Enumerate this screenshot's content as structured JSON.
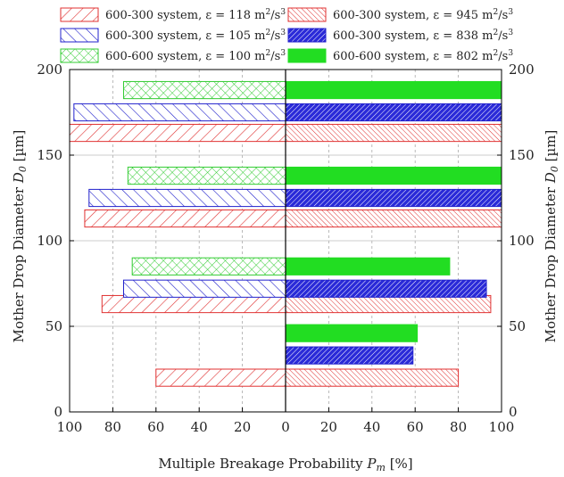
{
  "chart_data": {
    "type": "bar",
    "orientation": "horizontal-butterfly",
    "xlabel": "Multiple Breakage Probability P_m [%]",
    "xlabel_parts": {
      "main": "Multiple Breakage Probability ",
      "sym": "P",
      "sub": "m",
      "unit": " [%]"
    },
    "ylabel_left": "Mother Drop Diameter D_0 [µm]",
    "ylabel_parts": {
      "main": "Mother Drop Diameter ",
      "sym": "D",
      "sub": "0",
      "unit": " [µm]"
    },
    "x_left_ticks": [
      100,
      80,
      60,
      40,
      20,
      0
    ],
    "x_right_ticks": [
      0,
      20,
      40,
      60,
      80,
      100
    ],
    "y_ticks": [
      0,
      50,
      100,
      150,
      200
    ],
    "xlim_left": [
      100,
      0
    ],
    "xlim_right": [
      0,
      100
    ],
    "ylim": [
      0,
      200
    ],
    "grid": "dashed vertical x-gridlines, y-gridlines at 50, 100, 150",
    "legend_position": "top, two columns",
    "series": [
      {
        "name": "600-300 system, ε = 118 m²/s³",
        "label_text": "600-300 system, ε = 118 m",
        "label_sup1": "2",
        "label_mid": "/s",
        "label_sup2": "3",
        "side": "left",
        "pattern": "diag-red",
        "color": "#e03131",
        "bars": [
          {
            "y_center": 20,
            "value": 60
          },
          {
            "y_center": 63,
            "value": 85
          },
          {
            "y_center": 113,
            "value": 93
          },
          {
            "y_center": 163,
            "value": 100
          }
        ]
      },
      {
        "name": "600-300 system, ε = 105 m²/s³",
        "label_text": "600-300 system, ε = 105 m",
        "label_sup1": "2",
        "label_mid": "/s",
        "label_sup2": "3",
        "side": "left",
        "pattern": "anti-blue",
        "color": "#2222cc",
        "bars": [
          {
            "y_center": 72,
            "value": 75
          },
          {
            "y_center": 125,
            "value": 91
          },
          {
            "y_center": 175,
            "value": 98
          }
        ]
      },
      {
        "name": "600-600 system, ε = 100 m²/s³",
        "label_text": "600-600 system, ε = 100 m",
        "label_sup1": "2",
        "label_mid": "/s",
        "label_sup2": "3",
        "side": "left",
        "pattern": "cross-green",
        "color": "#33cc33",
        "bars": [
          {
            "y_center": 85,
            "value": 71
          },
          {
            "y_center": 138,
            "value": 73
          },
          {
            "y_center": 188,
            "value": 75
          }
        ]
      },
      {
        "name": "600-300 system, ε = 945 m²/s³",
        "label_text": "600-300 system, ε = 945 m",
        "label_sup1": "2",
        "label_mid": "/s",
        "label_sup2": "3",
        "side": "right",
        "pattern": "dense-red",
        "color": "#e03131",
        "bars": [
          {
            "y_center": 20,
            "value": 80
          },
          {
            "y_center": 63,
            "value": 95
          },
          {
            "y_center": 113,
            "value": 100
          },
          {
            "y_center": 163,
            "value": 100
          }
        ]
      },
      {
        "name": "600-300 system, ε = 838 m²/s³",
        "label_text": "600-300 system, ε = 838 m",
        "label_sup1": "2",
        "label_mid": "/s",
        "label_sup2": "3",
        "side": "right",
        "pattern": "dense-blue",
        "color": "#2222cc",
        "bars": [
          {
            "y_center": 33,
            "value": 59
          },
          {
            "y_center": 72,
            "value": 93
          },
          {
            "y_center": 125,
            "value": 100
          },
          {
            "y_center": 175,
            "value": 100
          }
        ]
      },
      {
        "name": "600-600 system, ε = 802 m²/s³",
        "label_text": "600-600 system, ε = 802 m",
        "label_sup1": "2",
        "label_mid": "/s",
        "label_sup2": "3",
        "side": "right",
        "pattern": "solid-green",
        "color": "#22dd22",
        "bars": [
          {
            "y_center": 46,
            "value": 61
          },
          {
            "y_center": 85,
            "value": 76
          },
          {
            "y_center": 138,
            "value": 100
          },
          {
            "y_center": 188,
            "value": 100
          }
        ]
      }
    ],
    "bar_height_units": 10
  }
}
